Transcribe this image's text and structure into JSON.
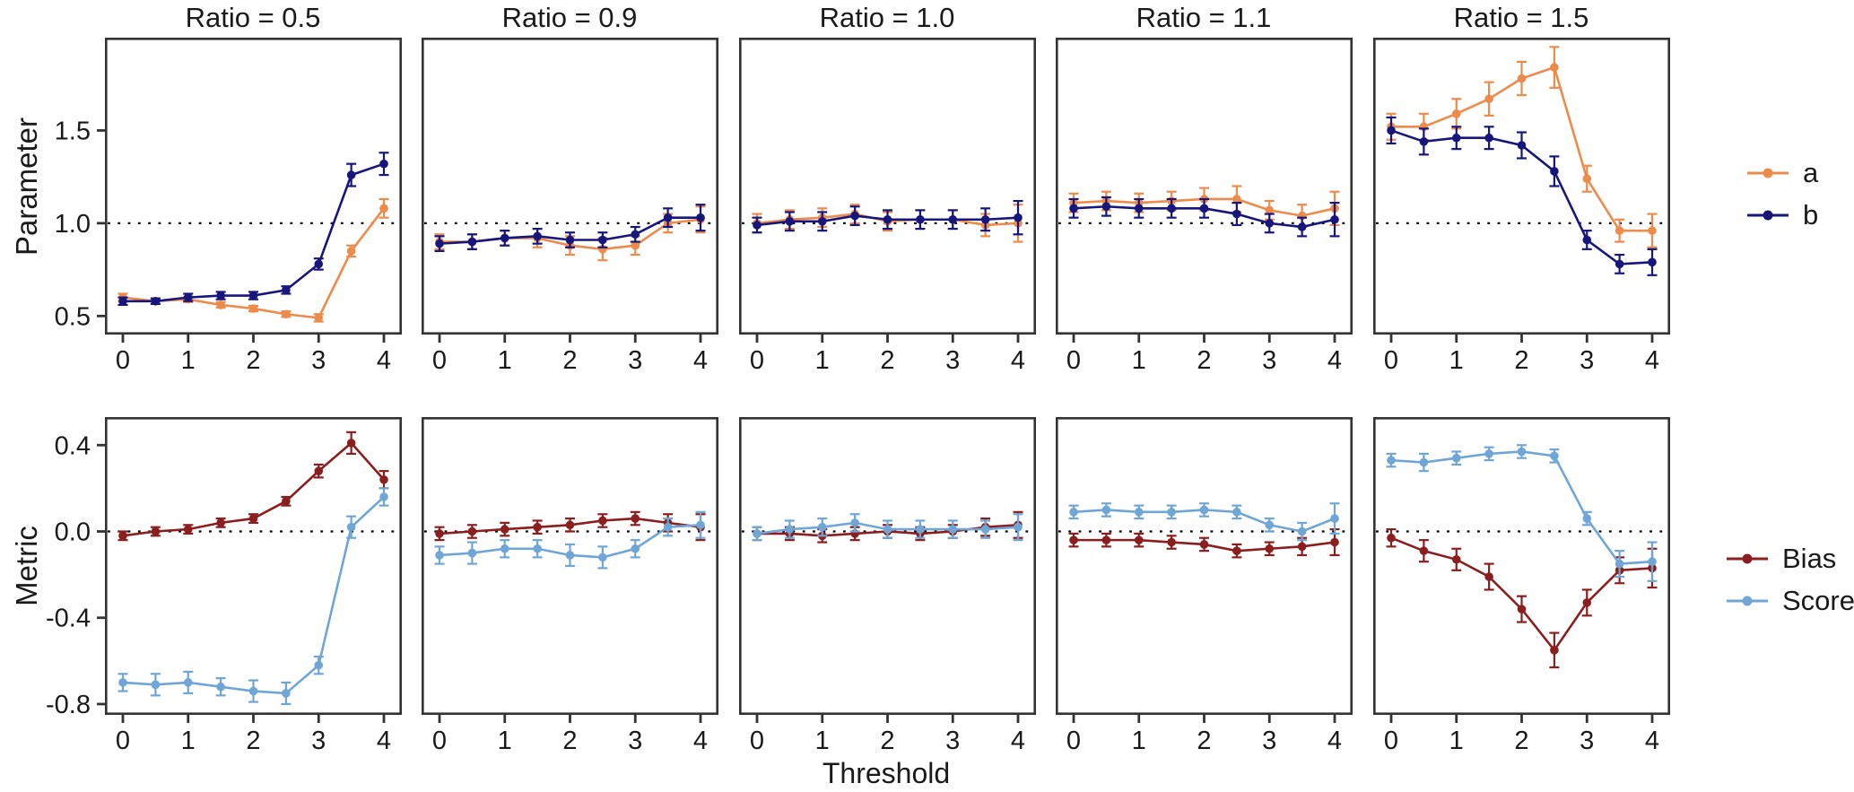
{
  "figure": {
    "xlabel": "Threshold",
    "background": "#ffffff",
    "text_color": "#1a1a1a",
    "border_color": "#333333",
    "ref_line_color": "#000000",
    "x_tick_labels": [
      "0",
      "1",
      "2",
      "3",
      "4"
    ]
  },
  "legends": {
    "parameter": {
      "items": [
        {
          "label": "a",
          "color": "#ED8B4A"
        },
        {
          "label": "b",
          "color": "#16167C"
        }
      ]
    },
    "metric": {
      "items": [
        {
          "label": "Bias",
          "color": "#8B1E1E"
        },
        {
          "label": "Score",
          "color": "#6FA6D6"
        }
      ]
    }
  },
  "chart_data": [
    {
      "type": "line",
      "row_label": "Parameter",
      "xlabel": "Threshold",
      "x": [
        0,
        0.5,
        1,
        1.5,
        2,
        2.5,
        3,
        3.5,
        4
      ],
      "x_ticks": [
        {
          "v": 0,
          "label": "0"
        },
        {
          "v": 1,
          "label": "1"
        },
        {
          "v": 2,
          "label": "2"
        },
        {
          "v": 3,
          "label": "3"
        },
        {
          "v": 4,
          "label": "4"
        }
      ],
      "y_ticks": [
        {
          "v": 1.5,
          "label": "1.5"
        },
        {
          "v": 1.0,
          "label": "1.0"
        },
        {
          "v": 0.5,
          "label": "0.5"
        }
      ],
      "ylim": [
        0.4,
        2.0
      ],
      "ref_line": 1.0,
      "grid": false,
      "legend_position": "right",
      "facets": [
        {
          "title": "Ratio = 0.5",
          "series": [
            {
              "name": "a",
              "color": "#ED8B4A",
              "values": [
                0.6,
                0.58,
                0.59,
                0.56,
                0.54,
                0.51,
                0.49,
                0.85,
                1.08
              ],
              "errors": [
                0.02,
                0.015,
                0.015,
                0.015,
                0.015,
                0.015,
                0.02,
                0.03,
                0.05
              ]
            },
            {
              "name": "b",
              "color": "#16167C",
              "values": [
                0.58,
                0.58,
                0.6,
                0.61,
                0.61,
                0.64,
                0.78,
                1.26,
                1.32
              ],
              "errors": [
                0.02,
                0.015,
                0.02,
                0.02,
                0.02,
                0.02,
                0.03,
                0.06,
                0.06
              ]
            }
          ]
        },
        {
          "title": "Ratio = 0.9",
          "series": [
            {
              "name": "a",
              "color": "#ED8B4A",
              "values": [
                0.9,
                0.9,
                0.92,
                0.92,
                0.88,
                0.86,
                0.88,
                1.0,
                1.02
              ],
              "errors": [
                0.04,
                0.04,
                0.04,
                0.05,
                0.05,
                0.06,
                0.05,
                0.05,
                0.07
              ]
            },
            {
              "name": "b",
              "color": "#16167C",
              "values": [
                0.89,
                0.9,
                0.92,
                0.93,
                0.91,
                0.91,
                0.94,
                1.03,
                1.03
              ],
              "errors": [
                0.04,
                0.04,
                0.04,
                0.04,
                0.04,
                0.04,
                0.04,
                0.05,
                0.07
              ]
            }
          ]
        },
        {
          "title": "Ratio = 1.0",
          "series": [
            {
              "name": "a",
              "color": "#ED8B4A",
              "values": [
                1.0,
                1.02,
                1.03,
                1.05,
                1.01,
                1.02,
                1.02,
                0.99,
                1.0
              ],
              "errors": [
                0.05,
                0.05,
                0.05,
                0.05,
                0.05,
                0.05,
                0.05,
                0.06,
                0.1
              ]
            },
            {
              "name": "b",
              "color": "#16167C",
              "values": [
                0.99,
                1.01,
                1.01,
                1.04,
                1.02,
                1.02,
                1.02,
                1.02,
                1.03
              ],
              "errors": [
                0.04,
                0.05,
                0.05,
                0.05,
                0.05,
                0.05,
                0.05,
                0.06,
                0.09
              ]
            }
          ]
        },
        {
          "title": "Ratio = 1.1",
          "series": [
            {
              "name": "a",
              "color": "#ED8B4A",
              "values": [
                1.11,
                1.12,
                1.11,
                1.12,
                1.13,
                1.13,
                1.07,
                1.04,
                1.08
              ],
              "errors": [
                0.05,
                0.05,
                0.05,
                0.05,
                0.06,
                0.07,
                0.05,
                0.06,
                0.09
              ]
            },
            {
              "name": "b",
              "color": "#16167C",
              "values": [
                1.08,
                1.09,
                1.08,
                1.08,
                1.08,
                1.05,
                1.0,
                0.98,
                1.02
              ],
              "errors": [
                0.05,
                0.05,
                0.05,
                0.05,
                0.05,
                0.06,
                0.05,
                0.05,
                0.09
              ]
            }
          ]
        },
        {
          "title": "Ratio = 1.5",
          "series": [
            {
              "name": "a",
              "color": "#ED8B4A",
              "values": [
                1.52,
                1.52,
                1.59,
                1.67,
                1.78,
                1.84,
                1.24,
                0.96,
                0.96
              ],
              "errors": [
                0.07,
                0.07,
                0.08,
                0.09,
                0.09,
                0.11,
                0.07,
                0.06,
                0.09
              ]
            },
            {
              "name": "b",
              "color": "#16167C",
              "values": [
                1.5,
                1.44,
                1.46,
                1.46,
                1.42,
                1.28,
                0.91,
                0.78,
                0.79
              ],
              "errors": [
                0.07,
                0.07,
                0.06,
                0.06,
                0.07,
                0.08,
                0.05,
                0.05,
                0.07
              ]
            }
          ]
        }
      ]
    },
    {
      "type": "line",
      "row_label": "Metric",
      "xlabel": "Threshold",
      "x": [
        0,
        0.5,
        1,
        1.5,
        2,
        2.5,
        3,
        3.5,
        4
      ],
      "x_ticks": [
        {
          "v": 0,
          "label": "0"
        },
        {
          "v": 1,
          "label": "1"
        },
        {
          "v": 2,
          "label": "2"
        },
        {
          "v": 3,
          "label": "3"
        },
        {
          "v": 4,
          "label": "4"
        }
      ],
      "y_ticks": [
        {
          "v": 0.4,
          "label": "0.4"
        },
        {
          "v": 0.0,
          "label": "0.0"
        },
        {
          "v": -0.4,
          "label": "-0.4"
        },
        {
          "v": -0.8,
          "label": "-0.8"
        }
      ],
      "ylim": [
        -0.85,
        0.53
      ],
      "ref_line": 0.0,
      "grid": false,
      "legend_position": "right",
      "facets": [
        {
          "title": "Ratio = 0.5",
          "series": [
            {
              "name": "Bias",
              "color": "#8B1E1E",
              "values": [
                -0.02,
                0.0,
                0.01,
                0.04,
                0.06,
                0.14,
                0.28,
                0.41,
                0.24
              ],
              "errors": [
                0.02,
                0.02,
                0.02,
                0.02,
                0.02,
                0.02,
                0.03,
                0.05,
                0.04
              ]
            },
            {
              "name": "Score",
              "color": "#6FA6D6",
              "values": [
                -0.7,
                -0.71,
                -0.7,
                -0.72,
                -0.74,
                -0.75,
                -0.62,
                0.02,
                0.16
              ],
              "errors": [
                0.04,
                0.05,
                0.05,
                0.04,
                0.05,
                0.05,
                0.04,
                0.05,
                0.04
              ]
            }
          ]
        },
        {
          "title": "Ratio = 0.9",
          "series": [
            {
              "name": "Bias",
              "color": "#8B1E1E",
              "values": [
                -0.01,
                0.0,
                0.01,
                0.02,
                0.03,
                0.05,
                0.06,
                0.04,
                0.02
              ],
              "errors": [
                0.03,
                0.03,
                0.03,
                0.03,
                0.03,
                0.03,
                0.03,
                0.04,
                0.06
              ]
            },
            {
              "name": "Score",
              "color": "#6FA6D6",
              "values": [
                -0.11,
                -0.1,
                -0.08,
                -0.08,
                -0.11,
                -0.12,
                -0.08,
                0.02,
                0.03
              ],
              "errors": [
                0.04,
                0.05,
                0.04,
                0.04,
                0.05,
                0.05,
                0.04,
                0.04,
                0.06
              ]
            }
          ]
        },
        {
          "title": "Ratio = 1.0",
          "series": [
            {
              "name": "Bias",
              "color": "#8B1E1E",
              "values": [
                -0.01,
                -0.01,
                -0.02,
                -0.01,
                0.0,
                -0.01,
                0.0,
                0.02,
                0.03
              ],
              "errors": [
                0.03,
                0.03,
                0.03,
                0.03,
                0.03,
                0.03,
                0.03,
                0.04,
                0.06
              ]
            },
            {
              "name": "Score",
              "color": "#6FA6D6",
              "values": [
                -0.01,
                0.01,
                0.02,
                0.04,
                0.01,
                0.01,
                0.01,
                0.01,
                0.02
              ],
              "errors": [
                0.03,
                0.04,
                0.04,
                0.04,
                0.04,
                0.04,
                0.04,
                0.04,
                0.06
              ]
            }
          ]
        },
        {
          "title": "Ratio = 1.1",
          "series": [
            {
              "name": "Bias",
              "color": "#8B1E1E",
              "values": [
                -0.04,
                -0.04,
                -0.04,
                -0.05,
                -0.06,
                -0.09,
                -0.08,
                -0.07,
                -0.05
              ],
              "errors": [
                0.03,
                0.03,
                0.03,
                0.03,
                0.03,
                0.03,
                0.03,
                0.04,
                0.06
              ]
            },
            {
              "name": "Score",
              "color": "#6FA6D6",
              "values": [
                0.09,
                0.1,
                0.09,
                0.09,
                0.1,
                0.09,
                0.03,
                0.0,
                0.06
              ],
              "errors": [
                0.03,
                0.03,
                0.03,
                0.03,
                0.03,
                0.03,
                0.03,
                0.04,
                0.07
              ]
            }
          ]
        },
        {
          "title": "Ratio = 1.5",
          "series": [
            {
              "name": "Bias",
              "color": "#8B1E1E",
              "values": [
                -0.03,
                -0.09,
                -0.13,
                -0.21,
                -0.36,
                -0.55,
                -0.33,
                -0.18,
                -0.17
              ],
              "errors": [
                0.04,
                0.05,
                0.05,
                0.06,
                0.06,
                0.08,
                0.06,
                0.06,
                0.09
              ]
            },
            {
              "name": "Score",
              "color": "#6FA6D6",
              "values": [
                0.33,
                0.32,
                0.34,
                0.36,
                0.37,
                0.35,
                0.06,
                -0.15,
                -0.14
              ],
              "errors": [
                0.03,
                0.04,
                0.03,
                0.03,
                0.03,
                0.03,
                0.03,
                0.06,
                0.09
              ]
            }
          ]
        }
      ]
    }
  ]
}
